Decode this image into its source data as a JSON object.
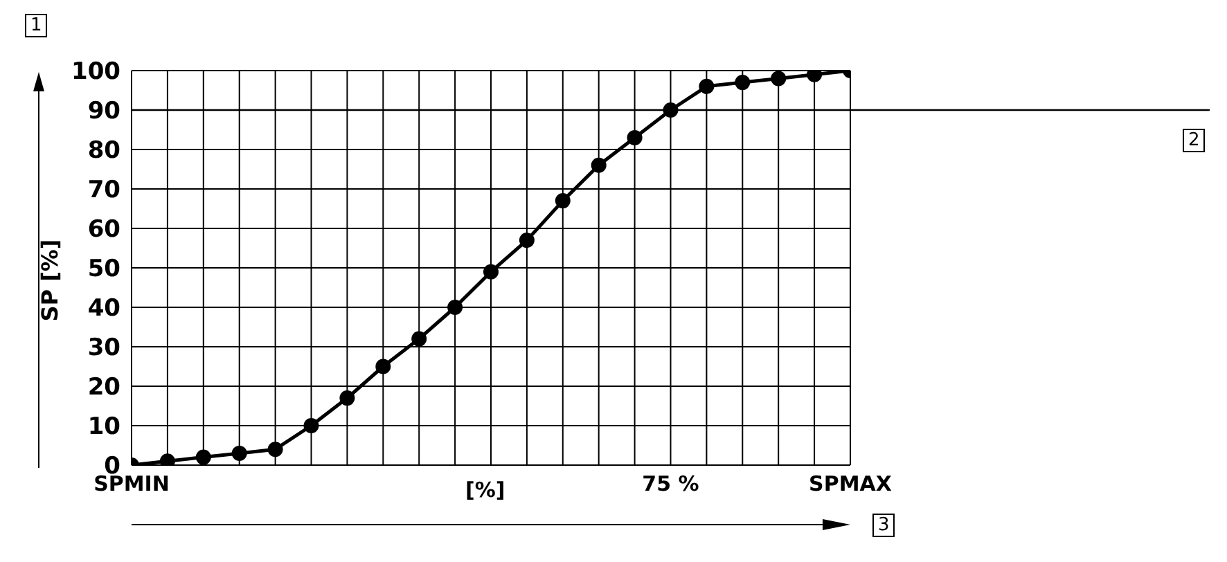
{
  "chart_data": {
    "type": "line",
    "xlabel": "[%]",
    "ylabel": "SP [%]",
    "categories": [
      "SPMIN",
      null,
      null,
      null,
      null,
      null,
      null,
      null,
      null,
      null,
      null,
      null,
      null,
      null,
      null,
      "75 %",
      null,
      null,
      null,
      null,
      "SPMAX"
    ],
    "series": [
      {
        "color": "#000000",
        "values": [
          0,
          1,
          2,
          3,
          4,
          10,
          17,
          25,
          32,
          40,
          49,
          57,
          67,
          76,
          83,
          90,
          96,
          97,
          98,
          99,
          100
        ]
      }
    ],
    "ylim": [
      0,
      100
    ],
    "yticks": [
      0,
      10,
      20,
      30,
      40,
      50,
      60,
      70,
      80,
      90,
      100
    ],
    "ref_lines": [
      {
        "axis": "y",
        "value": 90
      }
    ],
    "annotations": [
      "1",
      "2",
      "3"
    ],
    "grid": true,
    "marker": "circle",
    "line_style": "solid"
  }
}
